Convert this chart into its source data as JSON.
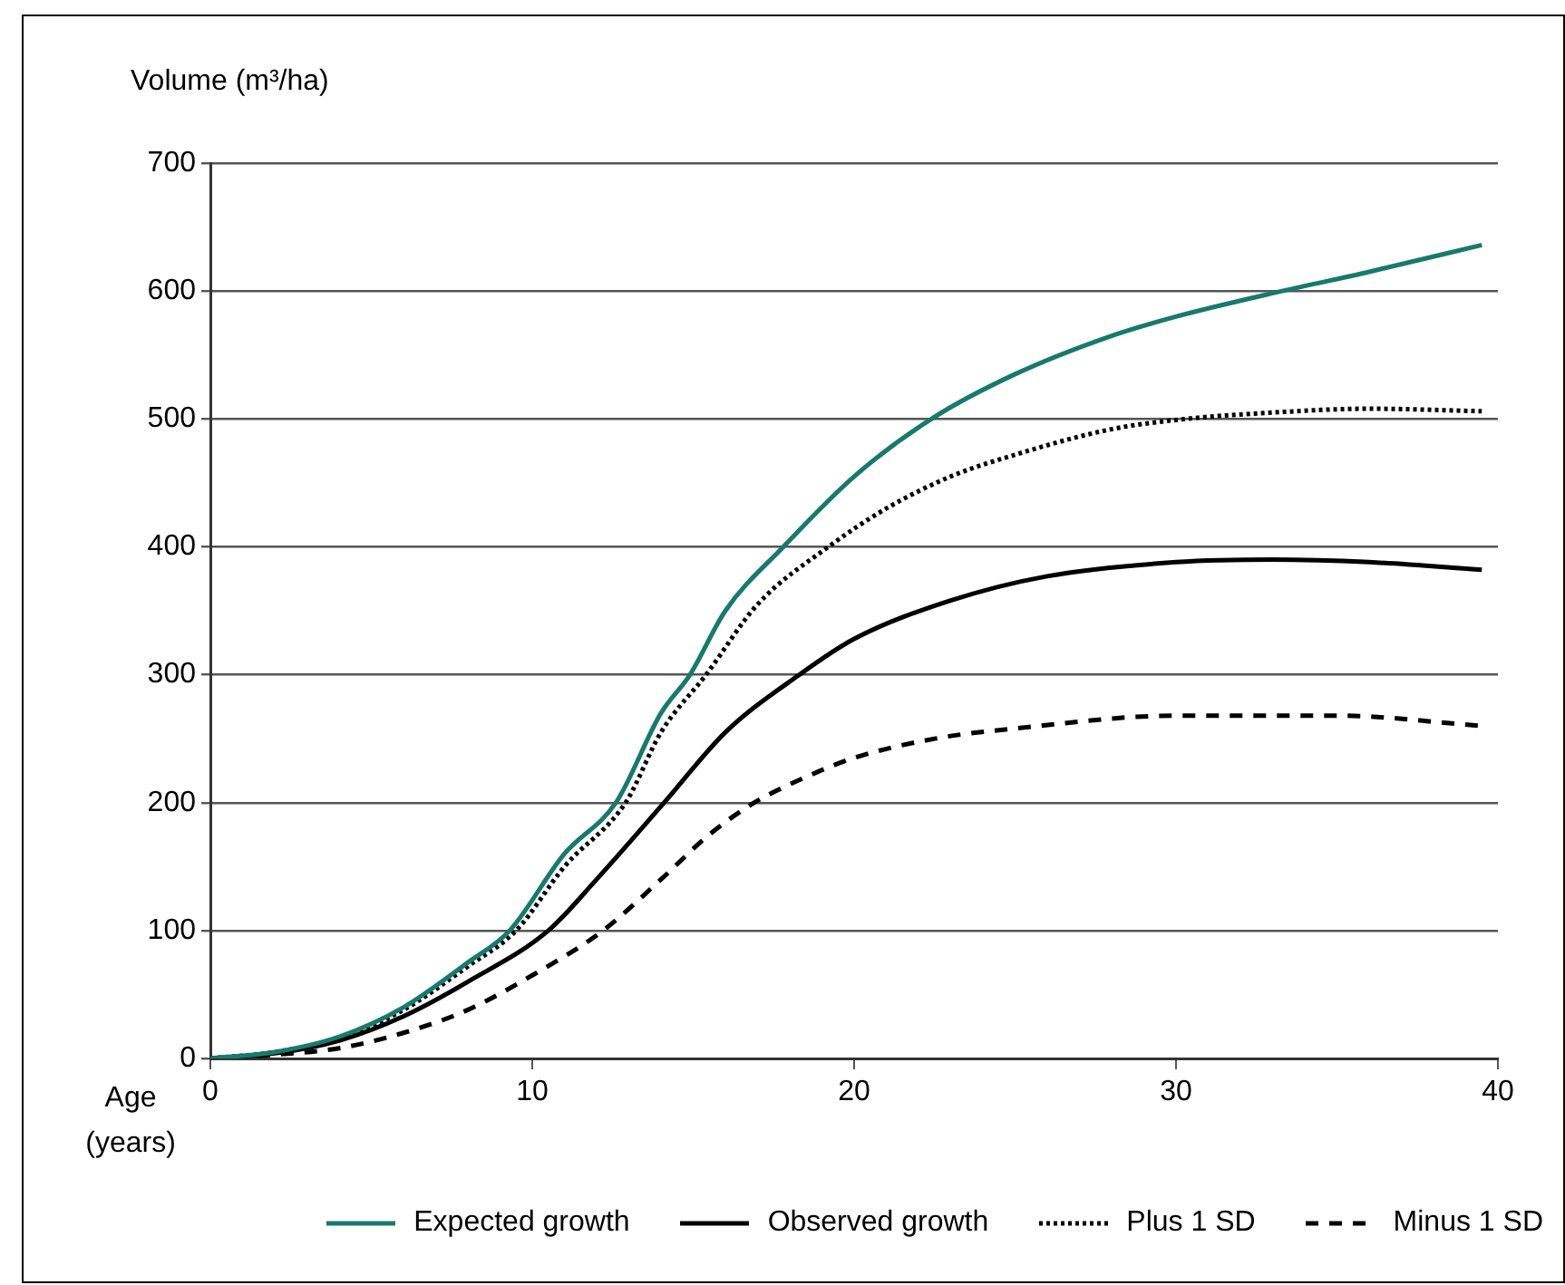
{
  "chart_data": {
    "type": "line",
    "ylabel": "Volume (m³/ha)",
    "xlabel": "Age (years)",
    "xlim": [
      0,
      40
    ],
    "xticks": [
      0,
      10,
      20,
      30,
      40
    ],
    "ylim": [
      0,
      700
    ],
    "yticks": [
      0,
      100,
      200,
      300,
      400,
      500,
      600,
      700
    ],
    "grid": "y",
    "legend": "bottom",
    "marker": "none",
    "series": [
      {
        "name": "Expected growth",
        "color": "#167a6c",
        "line_style": "solid",
        "x": [
          0,
          2,
          4,
          6,
          8,
          9.3,
          11,
          12.6,
          14,
          14.9,
          16,
          17.8,
          20,
          22.4,
          25,
          28,
          30,
          33.3,
          36,
          39.5
        ],
        "values": [
          0,
          5,
          17,
          40,
          75,
          100,
          160,
          200,
          270,
          300,
          350,
          400,
          455,
          500,
          535,
          565,
          580,
          600,
          615,
          636
        ]
      },
      {
        "name": "Observed growth",
        "color": "#000000",
        "line_style": "solid",
        "x": [
          0,
          2,
          4,
          6,
          8,
          10.5,
          12,
          14.1,
          16,
          18.3,
          20,
          23,
          26,
          30,
          33,
          36,
          39.5
        ],
        "values": [
          0,
          4,
          14,
          33,
          60,
          100,
          140,
          200,
          255,
          300,
          328,
          358,
          377,
          388,
          390,
          388,
          382
        ]
      },
      {
        "name": "Plus 1 SD",
        "color": "#000000",
        "line_style": "dotted",
        "x": [
          0,
          2,
          4,
          6,
          8,
          9.5,
          11,
          12.9,
          14,
          15.4,
          17,
          19.2,
          21,
          23,
          25,
          28,
          30.3,
          33,
          36,
          39.5
        ],
        "values": [
          0,
          5,
          16,
          38,
          72,
          100,
          150,
          200,
          255,
          300,
          355,
          400,
          430,
          455,
          472,
          492,
          500,
          505,
          508,
          506
        ]
      },
      {
        "name": "Minus 1 SD",
        "color": "#000000",
        "line_style": "dashed",
        "x": [
          0,
          2,
          4,
          6,
          8,
          10,
          12.2,
          14,
          15.5,
          16.9,
          18.5,
          20,
          22.5,
          25,
          30,
          35,
          39.5
        ],
        "values": [
          0,
          3,
          8,
          20,
          38,
          65,
          100,
          140,
          175,
          200,
          220,
          235,
          250,
          258,
          268,
          268,
          260
        ]
      }
    ]
  }
}
